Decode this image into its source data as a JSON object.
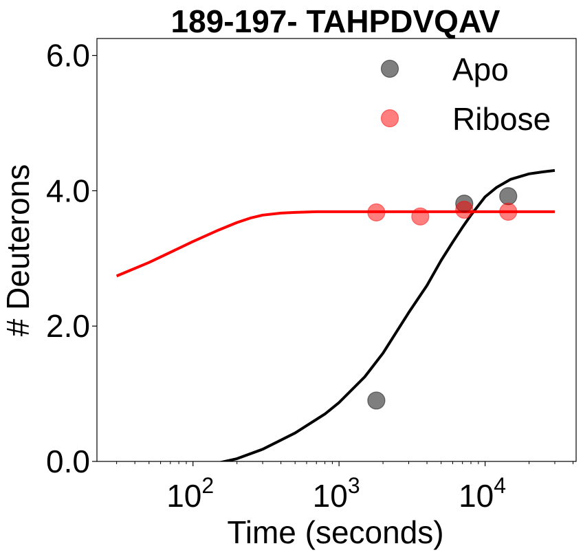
{
  "chart_data": {
    "type": "scatter",
    "title": "189-197- TAHPDVQAV",
    "xlabel": "Time (seconds)",
    "ylabel": "# Deuterons",
    "xscale": "log",
    "xlim": [
      22,
      42000
    ],
    "ylim": [
      0,
      6.25
    ],
    "yticks": [
      0,
      2,
      4,
      6
    ],
    "ytick_labels": [
      "0.0",
      "2.0",
      "4.0",
      "6.0"
    ],
    "xticks": [
      100,
      1000,
      10000
    ],
    "xtick_bases": [
      "10",
      "10",
      "10"
    ],
    "xtick_exponents": [
      "2",
      "3",
      "4"
    ],
    "legend_position": "top-right",
    "grid": false,
    "series": [
      {
        "name": "Apo",
        "color": "#000000",
        "opacity": 0.5,
        "points": [
          {
            "x": 1800,
            "y": 0.9
          },
          {
            "x": 7200,
            "y": 3.81
          },
          {
            "x": 14400,
            "y": 3.92
          }
        ],
        "fit": {
          "color": "#000000",
          "x": [
            30,
            100,
            150,
            200,
            300,
            500,
            800,
            1000,
            1500,
            2000,
            3000,
            4000,
            5000,
            6000,
            7000,
            8000,
            10000,
            12000,
            15000,
            20000,
            25000,
            30000
          ],
          "y": [
            -0.85,
            -0.1,
            -0.02,
            0.04,
            0.18,
            0.42,
            0.7,
            0.87,
            1.25,
            1.6,
            2.2,
            2.6,
            2.97,
            3.24,
            3.46,
            3.64,
            3.91,
            4.05,
            4.17,
            4.25,
            4.28,
            4.3
          ]
        }
      },
      {
        "name": "Ribose",
        "color": "#ff0000",
        "opacity": 0.5,
        "points": [
          {
            "x": 1800,
            "y": 3.68
          },
          {
            "x": 3600,
            "y": 3.62
          },
          {
            "x": 7200,
            "y": 3.72
          },
          {
            "x": 14400,
            "y": 3.69
          }
        ],
        "fit": {
          "color": "#ff0000",
          "x": [
            30,
            50,
            80,
            100,
            150,
            200,
            250,
            300,
            400,
            500,
            700,
            1000,
            2000,
            5000,
            10000,
            30000
          ],
          "y": [
            2.74,
            2.94,
            3.15,
            3.25,
            3.42,
            3.53,
            3.6,
            3.64,
            3.67,
            3.68,
            3.69,
            3.69,
            3.69,
            3.69,
            3.69,
            3.69
          ]
        }
      }
    ]
  }
}
